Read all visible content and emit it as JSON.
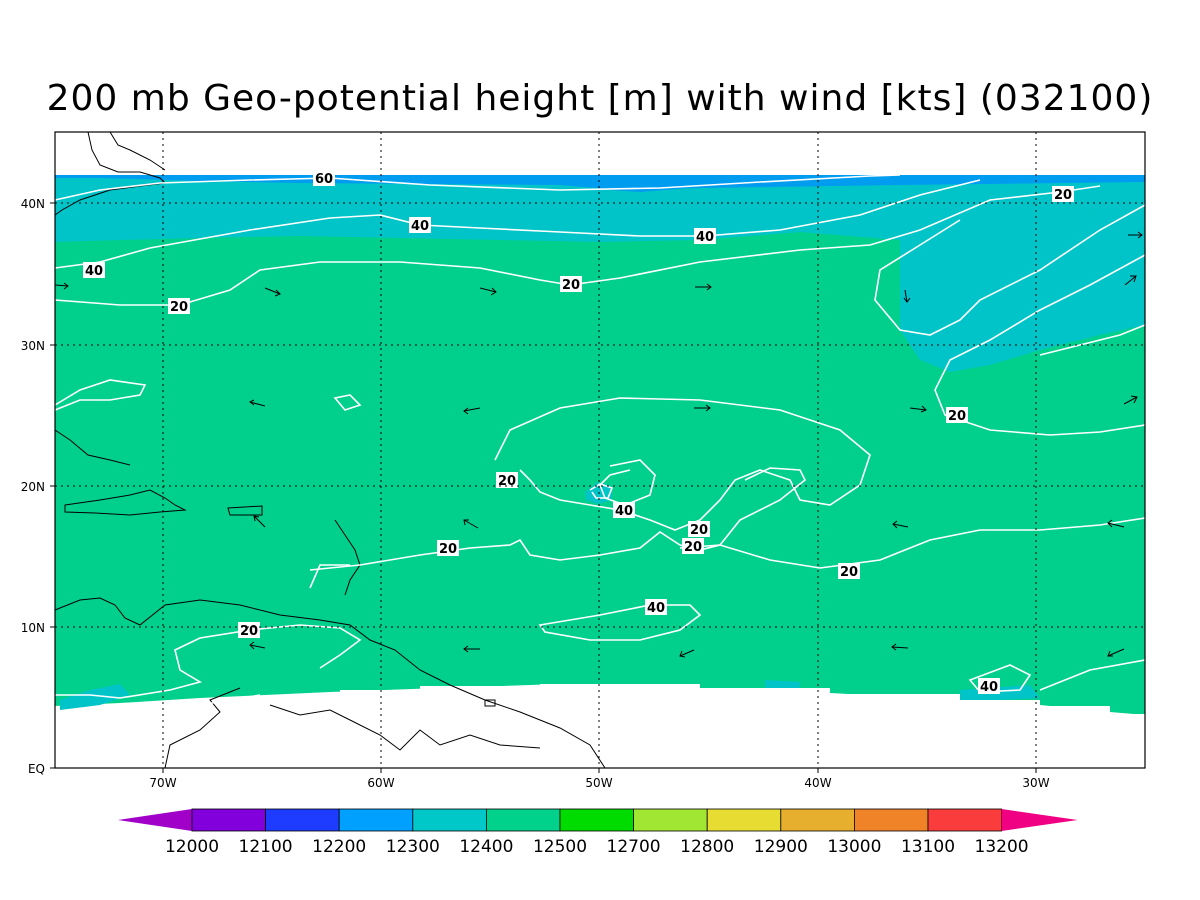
{
  "title": "200 mb Geo-potential height [m] with wind [kts] (032100)",
  "colors": {
    "shade_12400": "#00d08c",
    "shade_12300": "#00c4c8",
    "shade_12200": "#009cf0",
    "contour": "#ffffff",
    "coast": "#000000",
    "frame": "#000000"
  },
  "lat_labels": [
    "40N",
    "30N",
    "20N",
    "10N",
    "EQ"
  ],
  "lon_labels": [
    "70W",
    "60W",
    "50W",
    "40W",
    "30W"
  ],
  "contour_labels": [
    "60",
    "40",
    "40",
    "40",
    "20",
    "20",
    "20",
    "20",
    "20",
    "40",
    "20",
    "20",
    "20",
    "20",
    "40",
    "20",
    "40"
  ],
  "colorbar": {
    "labels": [
      "12000",
      "12100",
      "12200",
      "12300",
      "12400",
      "12500",
      "12700",
      "12800",
      "12900",
      "13000",
      "13100",
      "13200"
    ],
    "colors": [
      "#a000c8",
      "#8200dc",
      "#1e3cff",
      "#00a0ff",
      "#00c8c8",
      "#00d28c",
      "#00dc00",
      "#a0e632",
      "#e6dc32",
      "#e6af2d",
      "#f08228",
      "#fa3c3c",
      "#f00082"
    ]
  }
}
